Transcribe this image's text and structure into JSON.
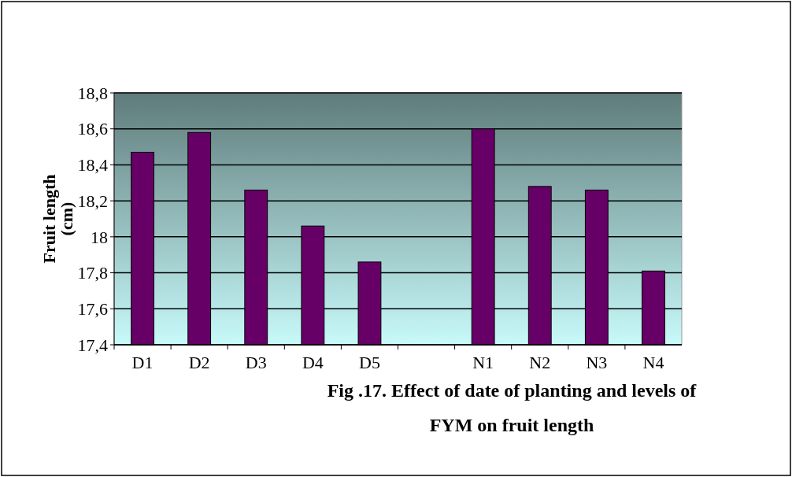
{
  "chart_data": {
    "type": "bar",
    "title": "Fig .17. Effect of date of planting and levels of FYM on fruit length",
    "ylabel": "Fruit length (cm)",
    "categories": [
      "D1",
      "D2",
      "D3",
      "D4",
      "D5",
      null,
      "N1",
      "N2",
      "N3",
      "N4"
    ],
    "values": [
      18.47,
      18.58,
      18.26,
      18.06,
      17.86,
      null,
      18.6,
      18.28,
      18.26,
      17.81
    ],
    "color": "#660066",
    "ylim": [
      17.4,
      18.8
    ],
    "yticks": [
      {
        "value": 17.4,
        "label": "17,4"
      },
      {
        "value": 17.6,
        "label": "17,6"
      },
      {
        "value": 17.8,
        "label": "17,8"
      },
      {
        "value": 18,
        "label": "18"
      },
      {
        "value": 18.2,
        "label": "18,2"
      },
      {
        "value": 18.4,
        "label": "18,4"
      },
      {
        "value": 18.6,
        "label": "18,6"
      },
      {
        "value": 18.8,
        "label": "18,8"
      }
    ],
    "grid": true
  }
}
